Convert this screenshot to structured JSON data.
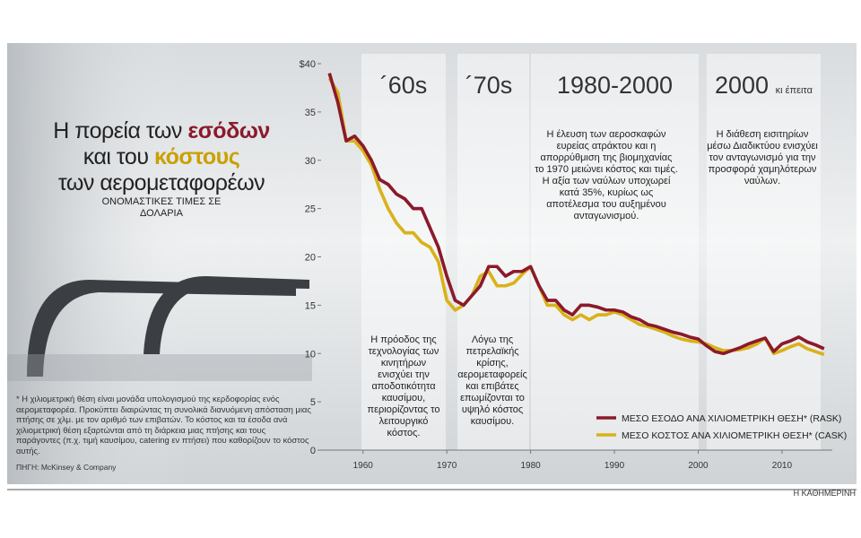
{
  "title": [
    "Η πορεία των",
    "εσόδων",
    "και του",
    "κόστους",
    "των αερομεταφορέων"
  ],
  "subtitle": "ΟΝΟΜΑΣΤΙΚΕΣ ΤΙΜΕΣ ΣΕ ΔΟΛΑΡΙΑ",
  "footnote": "* Η χιλιομετρική θέση είναι μονάδα υπολογισμού της κερδοφορίας ενός αερομεταφορέα. Προκύπτει διαιρώντας τη συνολικά διανυόμενη απόσταση μιας πτήσης σε χλμ. με τον αριθμό των επιβατών. Το κόστος και τα έσοδα ανά χιλιομετρική θέση εξαρτώνται από τη διάρκεια μιας πτήσης και τους παράγοντες (π.χ. τιμή καυσίμου, catering εν πτήσει) που καθορίζουν το κόστος αυτής.",
  "source": "ΠΗΓΗ: McKinsey & Company",
  "credit": "Η ΚΑΘΗΜΕΡΙΝΗ",
  "periods": [
    {
      "heading": "´60s",
      "text": "Η πρόοδος της τεχνολογίας των κινητήρων ενισχύει την αποδοτικότητα καυσίμου, περιορίζοντας το λειτουργικό κόστος."
    },
    {
      "heading": "´70s",
      "text": "Λόγω της πετρελαϊκής κρίσης, αερομεταφορείς και επιβάτες επωμίζονται το υψηλό κόστος καυσίμου."
    },
    {
      "heading": "1980-2000",
      "text": "Η έλευση των αεροσκαφών ευρείας ατράκτου και η απορρύθμιση της βιομηχανίας το 1970 μειώνει κόστος και τιμές. Η αξία των ναύλων υποχωρεί κατά 35%, κυρίως ως αποτέλεσμα του αυξημένου ανταγωνισμού."
    },
    {
      "heading": "2000",
      "subheading": "κι έπειτα",
      "text": "Η διάθεση εισιτηρίων μέσω Διαδικτύου ενισχύει τον ανταγωνισμό για την προσφορά χαμηλότερων ναύλων."
    }
  ],
  "chart_data": {
    "type": "line",
    "x": [
      1956,
      1957,
      1958,
      1959,
      1960,
      1961,
      1962,
      1963,
      1964,
      1965,
      1966,
      1967,
      1968,
      1969,
      1970,
      1971,
      1972,
      1973,
      1974,
      1975,
      1976,
      1977,
      1978,
      1979,
      1980,
      1981,
      1982,
      1983,
      1984,
      1985,
      1986,
      1987,
      1988,
      1989,
      1990,
      1991,
      1992,
      1993,
      1994,
      1995,
      1996,
      1997,
      1998,
      1999,
      2000,
      2001,
      2002,
      2003,
      2004,
      2005,
      2006,
      2007,
      2008,
      2009,
      2010,
      2011,
      2012,
      2013,
      2014,
      2015
    ],
    "series": [
      {
        "name": "ΜΕΣΟ ΕΣΟΔΟ ΑΝΑ ΧΙΛΙΟΜΕΤΡΙΚΗ ΘΕΣΗ* (RASK)",
        "color": "#8b1a2b",
        "values": [
          39,
          36,
          32,
          32.5,
          31.5,
          30,
          28,
          27.5,
          26.5,
          26,
          25,
          25,
          23,
          21,
          18,
          15.5,
          15,
          16,
          17,
          19,
          19,
          18,
          18.5,
          18.5,
          19,
          17,
          15.5,
          15.5,
          14.5,
          14,
          15,
          15,
          14.8,
          14.5,
          14.5,
          14.3,
          13.8,
          13.5,
          13,
          12.8,
          12.5,
          12.2,
          12,
          11.7,
          11.5,
          10.8,
          10.2,
          10,
          10.3,
          10.6,
          11,
          11.3,
          11.6,
          10.2,
          11,
          11.3,
          11.7,
          11.2,
          10.9,
          10.5
        ]
      },
      {
        "name": "ΜΕΣΟ ΚΟΣΤΟΣ ΑΝΑ ΧΙΛΙΟΜΕΤΡΙΚΗ ΘΕΣΗ* (CASK)",
        "color": "#d9b21a",
        "values": [
          38.5,
          37,
          32,
          32,
          31,
          29.5,
          27,
          25,
          23.5,
          22.5,
          22.5,
          21.5,
          21,
          19.5,
          15.5,
          14.5,
          15,
          16,
          18,
          18.5,
          17,
          17,
          17.3,
          18.2,
          19,
          17,
          15,
          15,
          14,
          13.5,
          14,
          13.5,
          14,
          14,
          14.3,
          14,
          13.5,
          13,
          12.8,
          12.5,
          12.2,
          11.8,
          11.5,
          11.3,
          11.2,
          11,
          10.6,
          10.3,
          10.3,
          10.4,
          10.6,
          11,
          11.6,
          10,
          10.3,
          10.7,
          11,
          10.5,
          10.2,
          9.9
        ]
      }
    ],
    "xlim": [
      1955,
      2016
    ],
    "xticks": [
      1960,
      1970,
      1980,
      1990,
      2000,
      2010
    ],
    "ylim": [
      0,
      40
    ],
    "yticks": [
      0,
      5,
      10,
      15,
      20,
      25,
      30,
      35,
      {
        "value": 40,
        "label": "$40"
      }
    ],
    "legend": "lower right"
  }
}
